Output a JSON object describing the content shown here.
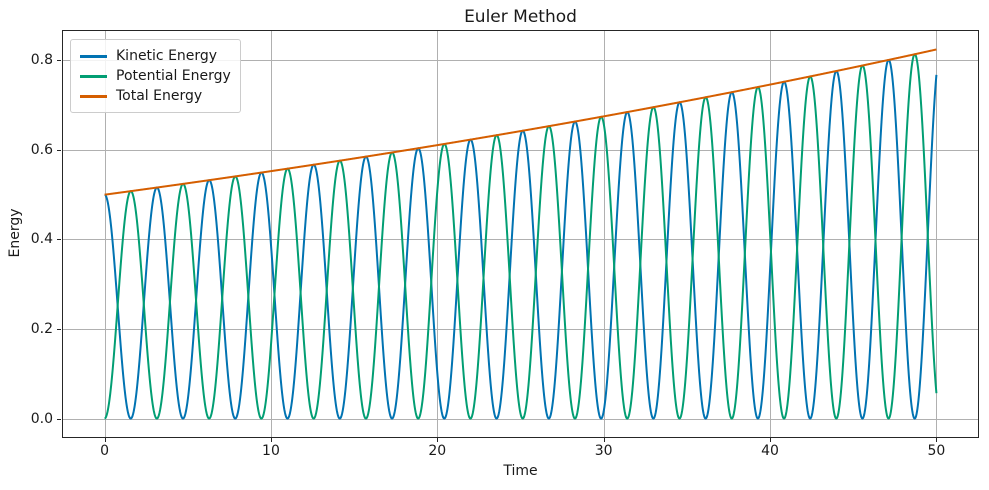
{
  "figure": {
    "background_color": "#ffffff",
    "text_color": "#1a1a1a",
    "spine_color": "#262626"
  },
  "chart_data": {
    "type": "line",
    "title": "Euler Method",
    "xlabel": "Time",
    "ylabel": "Energy",
    "xlim": [
      -2.5,
      52.5
    ],
    "ylim": [
      -0.0412,
      0.8656
    ],
    "xticks": [
      {
        "value": 0,
        "label": "0"
      },
      {
        "value": 10,
        "label": "10"
      },
      {
        "value": 20,
        "label": "20"
      },
      {
        "value": 30,
        "label": "30"
      },
      {
        "value": 40,
        "label": "40"
      },
      {
        "value": 50,
        "label": "50"
      }
    ],
    "yticks": [
      {
        "value": 0.0,
        "label": "0.0"
      },
      {
        "value": 0.2,
        "label": "0.2"
      },
      {
        "value": 0.4,
        "label": "0.4"
      },
      {
        "value": 0.6,
        "label": "0.6"
      },
      {
        "value": 0.8,
        "label": "0.8"
      }
    ],
    "grid": true,
    "grid_color": "#b0b0b0",
    "legend_position": "upper-left",
    "x_sampling": {
      "start": 0,
      "end": 50,
      "step": 0.02
    },
    "oscillation_period": 3.1416,
    "series": [
      {
        "name": "Kinetic Energy",
        "color": "#0173b2",
        "model": {
          "amplitude": 0.5,
          "growth_rate": 0.01,
          "angular_frequency": 1,
          "oscillation": "cos_squared"
        }
      },
      {
        "name": "Potential Energy",
        "color": "#029e73",
        "model": {
          "amplitude": 0.5,
          "growth_rate": 0.01,
          "angular_frequency": 1,
          "oscillation": "sin_squared"
        }
      },
      {
        "name": "Total Energy",
        "color": "#d55e00",
        "model": {
          "amplitude": 0.5,
          "growth_rate": 0.01,
          "angular_frequency": 0,
          "oscillation": "none"
        }
      }
    ],
    "total_energy_samples": {
      "t": [
        0,
        5,
        10,
        15,
        20,
        25,
        30,
        35,
        40,
        45,
        50
      ],
      "values": [
        0.5,
        0.5256,
        0.5526,
        0.5809,
        0.6107,
        0.642,
        0.6749,
        0.7095,
        0.7459,
        0.7841,
        0.8244
      ]
    }
  }
}
